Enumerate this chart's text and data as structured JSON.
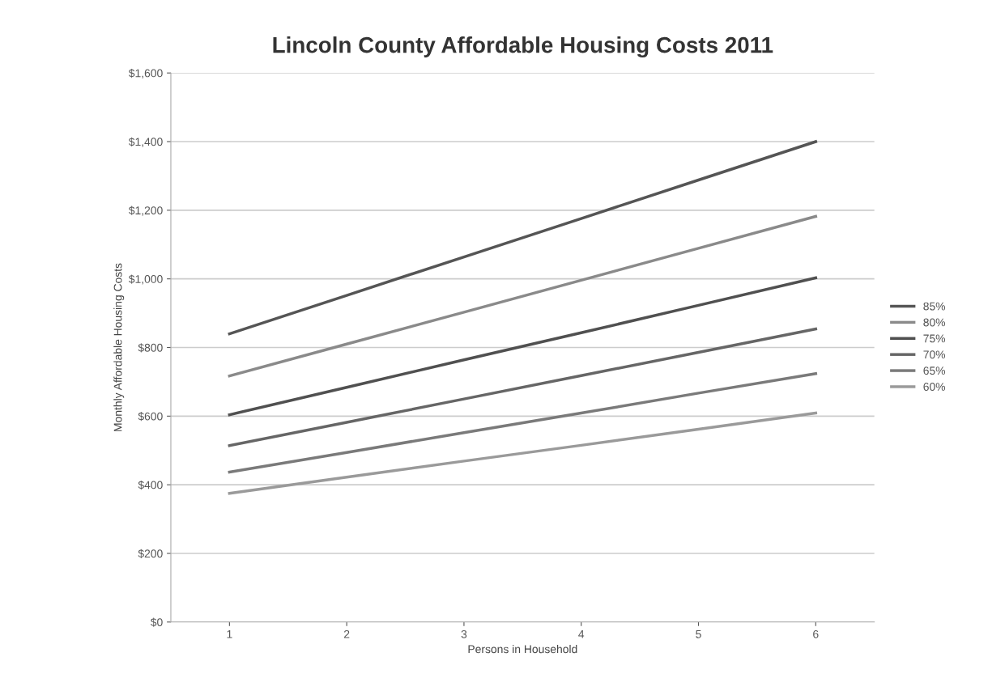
{
  "chart_data": {
    "type": "line",
    "title": "Lincoln County Affordable Housing Costs 2011",
    "xlabel": "Persons in Household",
    "ylabel": "Monthly Affordable Housing Costs",
    "categories": [
      "1",
      "2",
      "3",
      "4",
      "5",
      "6"
    ],
    "series": [
      {
        "name": "85%",
        "color": "#555555",
        "values": [
          840,
          952,
          1064,
          1176,
          1288,
          1400
        ]
      },
      {
        "name": "80%",
        "color": "#8a8a8a",
        "values": [
          717,
          810,
          903,
          996,
          1089,
          1182
        ]
      },
      {
        "name": "75%",
        "color": "#505050",
        "values": [
          604,
          684,
          764,
          843,
          923,
          1003
        ]
      },
      {
        "name": "70%",
        "color": "#666666",
        "values": [
          514,
          582,
          650,
          718,
          786,
          854
        ]
      },
      {
        "name": "65%",
        "color": "#7a7a7a",
        "values": [
          437,
          494,
          552,
          609,
          667,
          724
        ]
      },
      {
        "name": "60%",
        "color": "#9a9a9a",
        "values": [
          375,
          422,
          469,
          515,
          562,
          609
        ]
      }
    ],
    "ylim": [
      0,
      1600
    ],
    "yticks": [
      {
        "value": 0,
        "label": "$0"
      },
      {
        "value": 200,
        "label": "$200"
      },
      {
        "value": 400,
        "label": "$400"
      },
      {
        "value": 600,
        "label": "$600"
      },
      {
        "value": 800,
        "label": "$800"
      },
      {
        "value": 1000,
        "label": "$1,000"
      },
      {
        "value": 1200,
        "label": "$1,200"
      },
      {
        "value": 1400,
        "label": "$1,400"
      },
      {
        "value": 1600,
        "label": "$1,600"
      }
    ],
    "grid": "y",
    "legend": "right",
    "marker": "none",
    "line_style": "solid"
  }
}
